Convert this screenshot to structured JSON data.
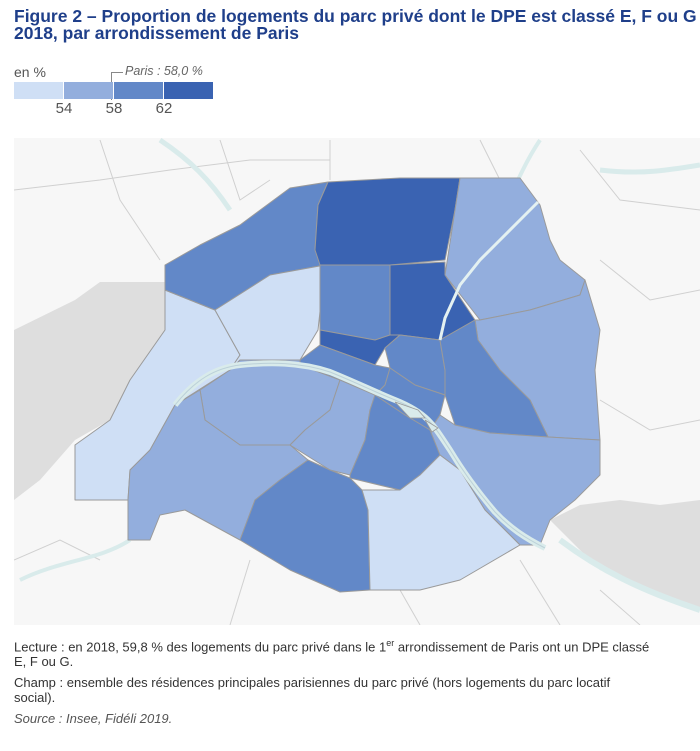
{
  "title_line1": "Figure 2 – Proportion de logements du parc privé dont le DPE est classé E, F ou G en",
  "title_line2": "2018, par arrondissement de Paris",
  "legend": {
    "unit": "en %",
    "reference": "Paris : 58,0 %",
    "ticks": [
      "54",
      "58",
      "62"
    ],
    "colors": [
      "#cfdff5",
      "#93aedd",
      "#6288c8",
      "#3a63b2"
    ]
  },
  "map": {
    "background_city": "#f4f4f4",
    "outside_gray": "#dedede",
    "river_color": "#d9ebeb",
    "border_color": "#9a9a9a",
    "arrondissements": [
      {
        "id": "1",
        "class": 3
      },
      {
        "id": "2",
        "class": 4
      },
      {
        "id": "3",
        "class": 3
      },
      {
        "id": "4",
        "class": 3
      },
      {
        "id": "5",
        "class": 3
      },
      {
        "id": "6",
        "class": 2
      },
      {
        "id": "7",
        "class": 2
      },
      {
        "id": "8",
        "class": 1
      },
      {
        "id": "9",
        "class": 3
      },
      {
        "id": "10",
        "class": 4
      },
      {
        "id": "11",
        "class": 3
      },
      {
        "id": "12",
        "class": 2
      },
      {
        "id": "13",
        "class": 1
      },
      {
        "id": "14",
        "class": 3
      },
      {
        "id": "15",
        "class": 2
      },
      {
        "id": "16",
        "class": 1
      },
      {
        "id": "17",
        "class": 3
      },
      {
        "id": "18",
        "class": 4
      },
      {
        "id": "19",
        "class": 2
      },
      {
        "id": "20",
        "class": 2
      }
    ]
  },
  "notes": {
    "lecture_before": "Lecture : en 2018, 59,8 % des logements du parc privé dans le 1",
    "lecture_sup": "er",
    "lecture_after": " arrondissement de Paris ont un DPE classé\nE, F ou G.",
    "champ": "Champ : ensemble des résidences principales parisiennes du parc privé (hors logements du parc locatif\nsocial).",
    "source": "Source : Insee, Fidéli 2019."
  }
}
